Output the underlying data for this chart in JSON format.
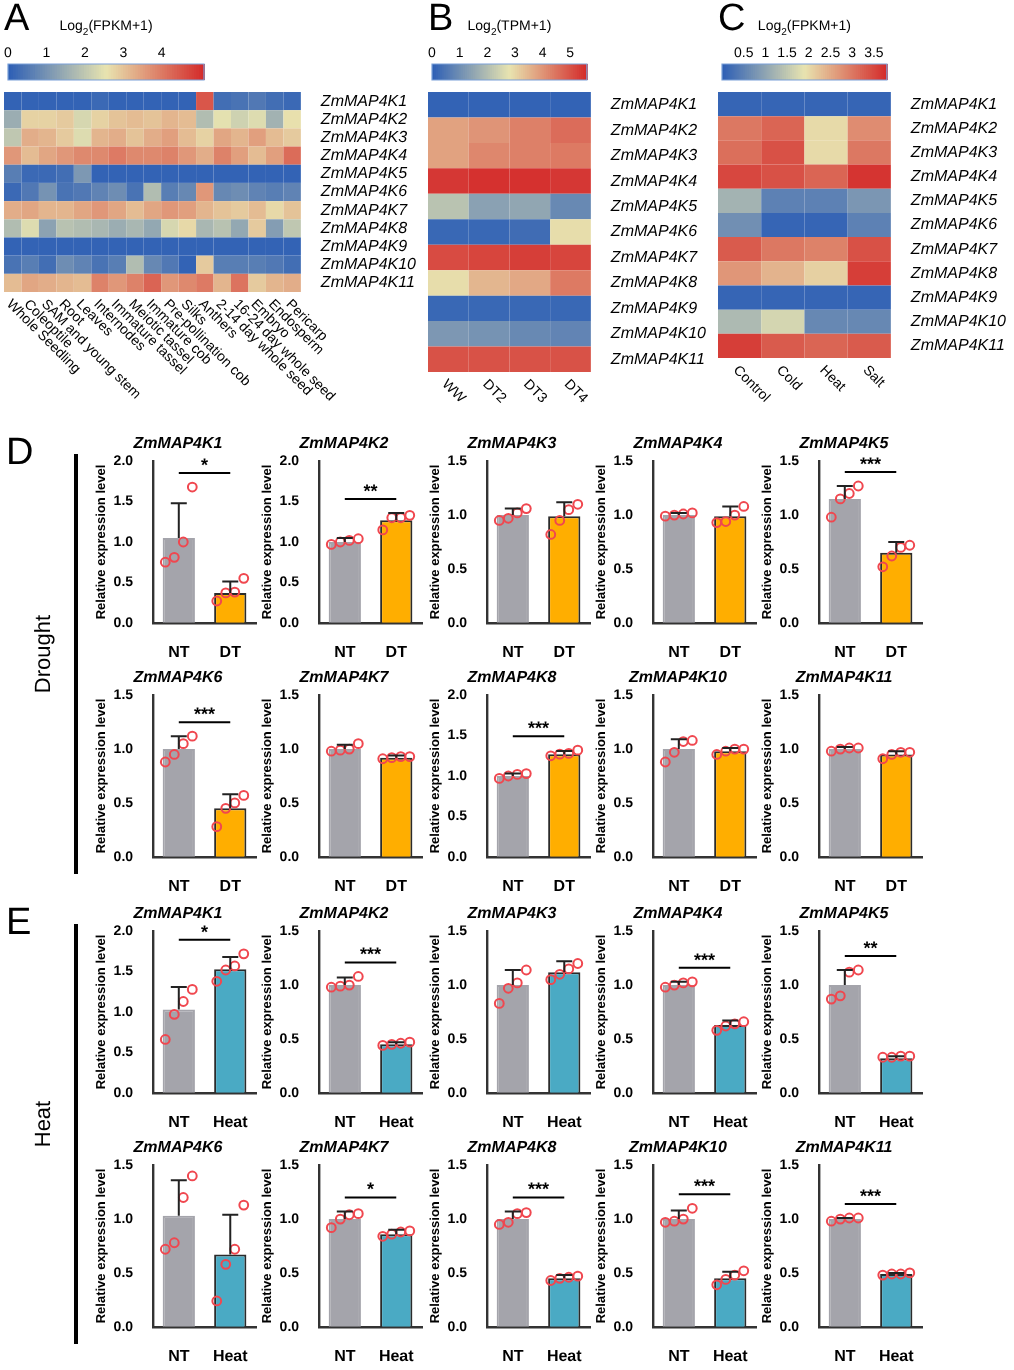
{
  "chart_data": [
    {
      "type": "heatmap",
      "annotations": [
        "A"
      ],
      "clabel": "Log$_{2}$(FPKM+1)",
      "clim": [
        0,
        5.1
      ],
      "cticks": [
        0,
        1,
        2,
        3,
        4
      ],
      "categories": [
        "Whole Seedling",
        "Coleoptile",
        "SAM and young stem",
        "Root",
        "Leaves",
        "Internodes",
        "Immature tassel",
        "Meiotic tassel",
        "Immature cob",
        "Pre-pollination cob",
        "Silks",
        "Anthers",
        "2-14 day whole seed",
        "16-24 day whole seed",
        "Embryo",
        "Endosperm",
        "Pericarp"
      ],
      "y_categories": [
        "ZmMAP4K1",
        "ZmMAP4K2",
        "ZmMAP4K3",
        "ZmMAP4K4",
        "ZmMAP4K5",
        "ZmMAP4K6",
        "ZmMAP4K7",
        "ZmMAP4K8",
        "ZmMAP4K9",
        "ZmMAP4K10",
        "ZmMAP4K11"
      ],
      "cells": [
        [
          0.1,
          0.1,
          0.1,
          0.1,
          0.1,
          0.2,
          0.1,
          0.1,
          0.1,
          0.1,
          0.1,
          4.5,
          0.3,
          0.4,
          0.5,
          0.3,
          0.2
        ],
        [
          1.5,
          2.8,
          2.8,
          2.9,
          2.3,
          2.8,
          3.0,
          3.1,
          3.0,
          3.2,
          3.1,
          1.8,
          2.5,
          2.2,
          2.4,
          1.6,
          2.6
        ],
        [
          2.0,
          3.3,
          3.2,
          2.9,
          2.4,
          3.2,
          3.3,
          3.0,
          3.3,
          3.5,
          3.1,
          2.8,
          3.4,
          3.2,
          3.5,
          3.1,
          2.9
        ],
        [
          3.6,
          3.1,
          3.4,
          3.6,
          3.8,
          3.8,
          4.0,
          3.8,
          3.8,
          3.9,
          3.6,
          3.3,
          3.9,
          3.5,
          3.1,
          3.5,
          4.2
        ],
        [
          0.6,
          0.2,
          0.2,
          0.3,
          1.1,
          0.1,
          0.1,
          0.1,
          0.1,
          0.1,
          0.1,
          0.1,
          0.1,
          0.1,
          0.1,
          0.1,
          0.1
        ],
        [
          0.2,
          0.5,
          1.0,
          0.4,
          0.5,
          0.7,
          0.9,
          0.4,
          1.8,
          0.6,
          0.8,
          3.6,
          0.8,
          0.9,
          0.7,
          0.6,
          0.7
        ],
        [
          3.3,
          3.4,
          3.2,
          3.2,
          3.4,
          3.6,
          3.4,
          3.1,
          3.4,
          3.6,
          3.5,
          3.2,
          3.0,
          2.9,
          3.1,
          2.7,
          3.0
        ],
        [
          1.8,
          2.4,
          1.3,
          1.9,
          1.8,
          1.7,
          1.5,
          1.7,
          1.4,
          2.3,
          2.7,
          1.7,
          1.9,
          1.4,
          2.9,
          1.2,
          2.0
        ],
        [
          0.1,
          0.1,
          0.1,
          0.1,
          0.1,
          0.1,
          0.1,
          0.1,
          0.1,
          0.1,
          0.1,
          0.1,
          0.1,
          0.1,
          0.1,
          0.1,
          0.1
        ],
        [
          0.4,
          0.6,
          0.3,
          0.9,
          0.7,
          0.4,
          0.6,
          1.8,
          0.8,
          0.5,
          0.1,
          2.9,
          0.6,
          0.6,
          0.6,
          0.5,
          0.3
        ],
        [
          3.1,
          3.4,
          3.3,
          3.2,
          3.1,
          3.9,
          3.6,
          3.9,
          4.3,
          3.6,
          3.8,
          4.0,
          3.2,
          4.1,
          2.9,
          3.2,
          3.3
        ]
      ]
    },
    {
      "type": "heatmap",
      "annotations": [
        "B"
      ],
      "clabel": "Log$_{2}$(TPM+1)",
      "clim": [
        0,
        5.6
      ],
      "cticks": [
        0,
        1,
        2,
        3,
        4,
        5
      ],
      "categories": [
        "WW",
        "DT2",
        "DT3",
        "DT4"
      ],
      "y_categories": [
        "ZmMAP4K1",
        "ZmMAP4K2",
        "ZmMAP4K3",
        "ZmMAP4K4",
        "ZmMAP4K5",
        "ZmMAP4K6",
        "ZmMAP4K7",
        "ZmMAP4K8",
        "ZmMAP4K9",
        "ZmMAP4K10",
        "ZmMAP4K11"
      ],
      "cells": [
        [
          0.1,
          0.1,
          0.1,
          0.1
        ],
        [
          3.8,
          4.0,
          4.3,
          4.6
        ],
        [
          3.8,
          4.2,
          4.3,
          4.4
        ],
        [
          5.4,
          5.5,
          5.5,
          5.4
        ],
        [
          2.1,
          1.4,
          1.5,
          0.9
        ],
        [
          0.2,
          0.2,
          0.3,
          2.9
        ],
        [
          5.1,
          5.2,
          5.3,
          5.2
        ],
        [
          2.9,
          3.5,
          3.7,
          4.4
        ],
        [
          0.2,
          0.2,
          0.2,
          0.2
        ],
        [
          1.2,
          1.1,
          0.9,
          0.8
        ],
        [
          5.0,
          5.0,
          5.0,
          5.0
        ]
      ]
    },
    {
      "type": "heatmap",
      "annotations": [
        "C"
      ],
      "clabel": "Log$_{2}$(FPKM+1)",
      "clim": [
        0,
        3.8
      ],
      "cticks": [
        0.5,
        1,
        1.5,
        2,
        2.5,
        3,
        3.5
      ],
      "categories": [
        "Control",
        "Cold",
        "Heat",
        "Salt"
      ],
      "y_categories": [
        "ZmMAP4K1",
        "ZmMAP4K2",
        "ZmMAP4K3",
        "ZmMAP4K4",
        "ZmMAP4K5",
        "ZmMAP4K6",
        "ZmMAP4K7",
        "ZmMAP4K8",
        "ZmMAP4K9",
        "ZmMAP4K10",
        "ZmMAP4K11"
      ],
      "cells": [
        [
          0.1,
          0.1,
          0.1,
          0.1
        ],
        [
          3.0,
          3.2,
          2.0,
          2.8
        ],
        [
          3.1,
          3.4,
          2.0,
          3.0
        ],
        [
          3.5,
          3.4,
          3.2,
          3.7
        ],
        [
          1.2,
          0.5,
          0.5,
          0.8
        ],
        [
          0.7,
          0.1,
          0.1,
          0.5
        ],
        [
          3.3,
          3.0,
          2.9,
          3.4
        ],
        [
          2.7,
          2.4,
          2.1,
          3.6
        ],
        [
          0.1,
          0.1,
          0.1,
          0.1
        ],
        [
          1.3,
          1.7,
          0.6,
          0.6
        ],
        [
          3.6,
          3.3,
          3.2,
          3.3
        ]
      ]
    },
    {
      "type": "bar",
      "title": "ZmMAP4K1",
      "ylabel": "Relative expression level",
      "categories": [
        "NT",
        "DT"
      ],
      "annotations": [
        "D",
        "Drought",
        "*"
      ],
      "ylim": [
        0,
        2
      ],
      "yticks": [
        {
          "value": 0,
          "label": "0.0"
        },
        {
          "value": 0.5,
          "label": "0.5"
        },
        {
          "value": 1,
          "label": "1.0"
        },
        {
          "value": 1.5,
          "label": "1.5"
        },
        {
          "value": 2,
          "label": "2.0"
        }
      ],
      "series": [
        {
          "type": "bar",
          "colors": [
            "#a4a4ab",
            "#ffae00"
          ],
          "values": [
            1.05,
            0.37
          ],
          "errors": [
            [
              1.05,
              1.48
            ],
            [
              0.37,
              0.51
            ]
          ]
        },
        {
          "type": "scatter",
          "marker": "circle",
          "color": "#f0474f",
          "x": [
            "NT",
            "NT",
            "NT",
            "NT",
            "DT",
            "DT",
            "DT",
            "DT"
          ],
          "values": [
            0.75,
            0.81,
            1.0,
            1.68,
            0.27,
            0.37,
            0.38,
            0.55
          ]
        }
      ]
    },
    {
      "type": "bar",
      "title": "ZmMAP4K2",
      "ylabel": "Relative expression level",
      "categories": [
        "NT",
        "DT"
      ],
      "annotations": [
        "**"
      ],
      "ylim": [
        0,
        2
      ],
      "yticks": [
        {
          "value": 0,
          "label": "0.0"
        },
        {
          "value": 0.5,
          "label": "0.5"
        },
        {
          "value": 1,
          "label": "1.0"
        },
        {
          "value": 1.5,
          "label": "1.5"
        },
        {
          "value": 2,
          "label": "2.0"
        }
      ],
      "series": [
        {
          "type": "bar",
          "colors": [
            "#a4a4ab",
            "#ffae00"
          ],
          "values": [
            1.0,
            1.27
          ],
          "errors": [
            [
              1.0,
              1.05
            ],
            [
              1.27,
              1.36
            ]
          ]
        },
        {
          "type": "scatter",
          "marker": "circle",
          "color": "#f0474f",
          "x": [
            "NT",
            "NT",
            "NT",
            "NT",
            "DT",
            "DT",
            "DT",
            "DT"
          ],
          "values": [
            0.97,
            1.0,
            1.02,
            1.04,
            1.15,
            1.3,
            1.3,
            1.33
          ]
        }
      ]
    },
    {
      "type": "bar",
      "title": "ZmMAP4K3",
      "ylabel": "Relative expression level",
      "categories": [
        "NT",
        "DT"
      ],
      "ylim": [
        0,
        1.5
      ],
      "yticks": [
        {
          "value": 0,
          "label": "0.0"
        },
        {
          "value": 0.5,
          "label": "0.5"
        },
        {
          "value": 1,
          "label": "1.0"
        },
        {
          "value": 1.5,
          "label": "1.5"
        }
      ],
      "series": [
        {
          "type": "bar",
          "colors": [
            "#a4a4ab",
            "#ffae00"
          ],
          "values": [
            1.0,
            0.99
          ],
          "errors": [
            [
              1.0,
              1.06
            ],
            [
              0.99,
              1.12
            ]
          ]
        },
        {
          "type": "scatter",
          "marker": "circle",
          "color": "#f0474f",
          "x": [
            "NT",
            "NT",
            "NT",
            "NT",
            "DT",
            "DT",
            "DT",
            "DT"
          ],
          "values": [
            0.95,
            0.97,
            1.02,
            1.06,
            0.82,
            0.95,
            1.05,
            1.1
          ]
        }
      ]
    },
    {
      "type": "bar",
      "title": "ZmMAP4K4",
      "ylabel": "Relative expression level",
      "categories": [
        "NT",
        "DT"
      ],
      "ylim": [
        0,
        1.5
      ],
      "yticks": [
        {
          "value": 0,
          "label": "0.0"
        },
        {
          "value": 0.5,
          "label": "0.5"
        },
        {
          "value": 1,
          "label": "1.0"
        },
        {
          "value": 1.5,
          "label": "1.5"
        }
      ],
      "series": [
        {
          "type": "bar",
          "colors": [
            "#a4a4ab",
            "#ffae00"
          ],
          "values": [
            1.0,
            0.99
          ],
          "errors": [
            [
              1.0,
              1.02
            ],
            [
              0.99,
              1.08
            ]
          ]
        },
        {
          "type": "scatter",
          "marker": "circle",
          "color": "#f0474f",
          "x": [
            "NT",
            "NT",
            "NT",
            "NT",
            "DT",
            "DT",
            "DT",
            "DT"
          ],
          "values": [
            0.99,
            1.0,
            1.01,
            1.02,
            0.93,
            0.94,
            1.0,
            1.08
          ]
        }
      ]
    },
    {
      "type": "bar",
      "title": "ZmMAP4K5",
      "ylabel": "Relative expression level",
      "categories": [
        "NT",
        "DT"
      ],
      "annotations": [
        "***"
      ],
      "ylim": [
        0,
        1.5
      ],
      "yticks": [
        {
          "value": 0,
          "label": "0.0"
        },
        {
          "value": 0.5,
          "label": "0.5"
        },
        {
          "value": 1,
          "label": "1.0"
        },
        {
          "value": 1.5,
          "label": "1.5"
        }
      ],
      "series": [
        {
          "type": "bar",
          "colors": [
            "#a4a4ab",
            "#ffae00"
          ],
          "values": [
            1.15,
            0.65
          ],
          "errors": [
            [
              1.15,
              1.27
            ],
            [
              0.65,
              0.75
            ]
          ]
        },
        {
          "type": "scatter",
          "marker": "circle",
          "color": "#f0474f",
          "x": [
            "NT",
            "NT",
            "NT",
            "NT",
            "DT",
            "DT",
            "DT",
            "DT"
          ],
          "values": [
            0.98,
            1.15,
            1.2,
            1.27,
            0.52,
            0.62,
            0.7,
            0.72
          ]
        }
      ]
    },
    {
      "type": "bar",
      "title": "ZmMAP4K6",
      "ylabel": "Relative expression level",
      "categories": [
        "NT",
        "DT"
      ],
      "annotations": [
        "***"
      ],
      "ylim": [
        0,
        1.5
      ],
      "yticks": [
        {
          "value": 0,
          "label": "0.0"
        },
        {
          "value": 0.5,
          "label": "0.5"
        },
        {
          "value": 1,
          "label": "1.0"
        },
        {
          "value": 1.5,
          "label": "1.5"
        }
      ],
      "series": [
        {
          "type": "bar",
          "colors": [
            "#a4a4ab",
            "#ffae00"
          ],
          "values": [
            1.0,
            0.45
          ],
          "errors": [
            [
              1.0,
              1.12
            ],
            [
              0.45,
              0.58
            ]
          ]
        },
        {
          "type": "scatter",
          "marker": "circle",
          "color": "#f0474f",
          "x": [
            "NT",
            "NT",
            "NT",
            "NT",
            "DT",
            "DT",
            "DT",
            "DT"
          ],
          "values": [
            0.88,
            0.95,
            1.05,
            1.12,
            0.28,
            0.45,
            0.5,
            0.57
          ]
        }
      ]
    },
    {
      "type": "bar",
      "title": "ZmMAP4K7",
      "ylabel": "Relative expression level",
      "categories": [
        "NT",
        "DT"
      ],
      "ylim": [
        0,
        1.5
      ],
      "yticks": [
        {
          "value": 0,
          "label": "0.0"
        },
        {
          "value": 0.5,
          "label": "0.5"
        },
        {
          "value": 1,
          "label": "1.0"
        },
        {
          "value": 1.5,
          "label": "1.5"
        }
      ],
      "series": [
        {
          "type": "bar",
          "colors": [
            "#a4a4ab",
            "#ffae00"
          ],
          "values": [
            1.0,
            0.92
          ],
          "errors": [
            [
              1.0,
              1.04
            ],
            [
              0.92,
              0.94
            ]
          ]
        },
        {
          "type": "scatter",
          "marker": "circle",
          "color": "#f0474f",
          "x": [
            "NT",
            "NT",
            "NT",
            "NT",
            "DT",
            "DT",
            "DT",
            "DT"
          ],
          "values": [
            0.98,
            0.99,
            1.0,
            1.05,
            0.91,
            0.92,
            0.93,
            0.93
          ]
        }
      ]
    },
    {
      "type": "bar",
      "title": "ZmMAP4K8",
      "ylabel": "Relative expression level",
      "categories": [
        "NT",
        "DT"
      ],
      "annotations": [
        "***"
      ],
      "ylim": [
        0,
        2
      ],
      "yticks": [
        {
          "value": 0,
          "label": "0.0"
        },
        {
          "value": 0.5,
          "label": "0.5"
        },
        {
          "value": 1,
          "label": "1.0"
        },
        {
          "value": 1.5,
          "label": "1.5"
        },
        {
          "value": 2,
          "label": "2.0"
        }
      ],
      "series": [
        {
          "type": "bar",
          "colors": [
            "#a4a4ab",
            "#ffae00"
          ],
          "values": [
            1.0,
            1.27
          ],
          "errors": [
            [
              1.0,
              1.03
            ],
            [
              1.27,
              1.31
            ]
          ]
        },
        {
          "type": "scatter",
          "marker": "circle",
          "color": "#f0474f",
          "x": [
            "NT",
            "NT",
            "NT",
            "NT",
            "DT",
            "DT",
            "DT",
            "DT"
          ],
          "values": [
            0.97,
            1.0,
            1.02,
            1.03,
            1.25,
            1.27,
            1.28,
            1.32
          ]
        }
      ]
    },
    {
      "type": "bar",
      "title": "ZmMAP4K10",
      "ylabel": "Relative expression level",
      "categories": [
        "NT",
        "DT"
      ],
      "ylim": [
        0,
        1.5
      ],
      "yticks": [
        {
          "value": 0,
          "label": "0.0"
        },
        {
          "value": 0.5,
          "label": "0.5"
        },
        {
          "value": 1,
          "label": "1.0"
        },
        {
          "value": 1.5,
          "label": "1.5"
        }
      ],
      "series": [
        {
          "type": "bar",
          "colors": [
            "#a4a4ab",
            "#ffae00"
          ],
          "values": [
            1.0,
            0.98
          ],
          "errors": [
            [
              1.0,
              1.09
            ],
            [
              0.98,
              1.01
            ]
          ]
        },
        {
          "type": "scatter",
          "marker": "circle",
          "color": "#f0474f",
          "x": [
            "NT",
            "NT",
            "NT",
            "NT",
            "DT",
            "DT",
            "DT",
            "DT"
          ],
          "values": [
            0.88,
            0.97,
            1.07,
            1.08,
            0.95,
            0.98,
            1.0,
            1.0
          ]
        }
      ]
    },
    {
      "type": "bar",
      "title": "ZmMAP4K11",
      "ylabel": "Relative expression level",
      "categories": [
        "NT",
        "DT"
      ],
      "ylim": [
        0,
        1.5
      ],
      "yticks": [
        {
          "value": 0,
          "label": "0.0"
        },
        {
          "value": 0.5,
          "label": "0.5"
        },
        {
          "value": 1,
          "label": "1.0"
        },
        {
          "value": 1.5,
          "label": "1.5"
        }
      ],
      "series": [
        {
          "type": "bar",
          "colors": [
            "#a4a4ab",
            "#ffae00"
          ],
          "values": [
            1.0,
            0.95
          ],
          "errors": [
            [
              1.0,
              1.02
            ],
            [
              0.95,
              0.98
            ]
          ]
        },
        {
          "type": "scatter",
          "marker": "circle",
          "color": "#f0474f",
          "x": [
            "NT",
            "NT",
            "NT",
            "NT",
            "DT",
            "DT",
            "DT",
            "DT"
          ],
          "values": [
            0.98,
            1.0,
            1.01,
            1.01,
            0.91,
            0.95,
            0.97,
            0.97
          ]
        }
      ]
    },
    {
      "type": "bar",
      "title": "ZmMAP4K1",
      "ylabel": "Relative expression level",
      "categories": [
        "NT",
        "Heat"
      ],
      "annotations": [
        "E",
        "Heat",
        "*"
      ],
      "ylim": [
        0,
        2
      ],
      "yticks": [
        {
          "value": 0,
          "label": "0.0"
        },
        {
          "value": 0.5,
          "label": "0.5"
        },
        {
          "value": 1,
          "label": "1.0"
        },
        {
          "value": 1.5,
          "label": "1.5"
        },
        {
          "value": 2,
          "label": "2.0"
        }
      ],
      "series": [
        {
          "type": "bar",
          "colors": [
            "#a4a4ab",
            "#4aaac4"
          ],
          "values": [
            1.03,
            1.53
          ],
          "errors": [
            [
              1.03,
              1.31
            ],
            [
              1.53,
              1.68
            ]
          ]
        },
        {
          "type": "scatter",
          "marker": "circle",
          "color": "#f0474f",
          "x": [
            "NT",
            "NT",
            "NT",
            "NT",
            "Heat",
            "Heat",
            "Heat",
            "Heat"
          ],
          "values": [
            0.66,
            0.97,
            1.13,
            1.28,
            1.38,
            1.52,
            1.57,
            1.72
          ]
        }
      ]
    },
    {
      "type": "bar",
      "title": "ZmMAP4K2",
      "ylabel": "Relative expression level",
      "categories": [
        "NT",
        "Heat"
      ],
      "annotations": [
        "***"
      ],
      "ylim": [
        0,
        1.5
      ],
      "yticks": [
        {
          "value": 0,
          "label": "0.0"
        },
        {
          "value": 0.5,
          "label": "0.5"
        },
        {
          "value": 1,
          "label": "1.0"
        },
        {
          "value": 1.5,
          "label": "1.5"
        }
      ],
      "series": [
        {
          "type": "bar",
          "colors": [
            "#a4a4ab",
            "#4aaac4"
          ],
          "values": [
            1.0,
            0.45
          ],
          "errors": [
            [
              1.0,
              1.07
            ],
            [
              0.45,
              0.47
            ]
          ]
        },
        {
          "type": "scatter",
          "marker": "circle",
          "color": "#f0474f",
          "x": [
            "NT",
            "NT",
            "NT",
            "NT",
            "Heat",
            "Heat",
            "Heat",
            "Heat"
          ],
          "values": [
            0.98,
            0.99,
            1.0,
            1.08,
            0.44,
            0.45,
            0.46,
            0.47
          ]
        }
      ]
    },
    {
      "type": "bar",
      "title": "ZmMAP4K3",
      "ylabel": "Relative expression level",
      "categories": [
        "NT",
        "Heat"
      ],
      "ylim": [
        0,
        1.5
      ],
      "yticks": [
        {
          "value": 0,
          "label": "0.0"
        },
        {
          "value": 0.5,
          "label": "0.5"
        },
        {
          "value": 1,
          "label": "1.0"
        },
        {
          "value": 1.5,
          "label": "1.5"
        }
      ],
      "series": [
        {
          "type": "bar",
          "colors": [
            "#a4a4ab",
            "#4aaac4"
          ],
          "values": [
            1.0,
            1.12
          ],
          "errors": [
            [
              1.0,
              1.14
            ],
            [
              1.12,
              1.22
            ]
          ]
        },
        {
          "type": "scatter",
          "marker": "circle",
          "color": "#f0474f",
          "x": [
            "NT",
            "NT",
            "NT",
            "NT",
            "Heat",
            "Heat",
            "Heat",
            "Heat"
          ],
          "values": [
            0.83,
            0.97,
            1.02,
            1.14,
            1.05,
            1.1,
            1.15,
            1.2
          ]
        }
      ]
    },
    {
      "type": "bar",
      "title": "ZmMAP4K4",
      "ylabel": "Relative expression level",
      "categories": [
        "NT",
        "Heat"
      ],
      "annotations": [
        "***"
      ],
      "ylim": [
        0,
        1.5
      ],
      "yticks": [
        {
          "value": 0,
          "label": "0.0"
        },
        {
          "value": 0.5,
          "label": "0.5"
        },
        {
          "value": 1,
          "label": "1.0"
        },
        {
          "value": 1.5,
          "label": "1.5"
        }
      ],
      "series": [
        {
          "type": "bar",
          "colors": [
            "#a4a4ab",
            "#4aaac4"
          ],
          "values": [
            1.0,
            0.63
          ],
          "errors": [
            [
              1.0,
              1.03
            ],
            [
              0.63,
              0.67
            ]
          ]
        },
        {
          "type": "scatter",
          "marker": "circle",
          "color": "#f0474f",
          "x": [
            "NT",
            "NT",
            "NT",
            "NT",
            "Heat",
            "Heat",
            "Heat",
            "Heat"
          ],
          "values": [
            0.98,
            1.0,
            1.02,
            1.03,
            0.58,
            0.62,
            0.64,
            0.66
          ]
        }
      ]
    },
    {
      "type": "bar",
      "title": "ZmMAP4K5",
      "ylabel": "Relative expression level",
      "categories": [
        "NT",
        "Heat"
      ],
      "annotations": [
        "**"
      ],
      "ylim": [
        0,
        1.5
      ],
      "yticks": [
        {
          "value": 0,
          "label": "0.0"
        },
        {
          "value": 0.5,
          "label": "0.5"
        },
        {
          "value": 1,
          "label": "1.0"
        },
        {
          "value": 1.5,
          "label": "1.5"
        }
      ],
      "series": [
        {
          "type": "bar",
          "colors": [
            "#a4a4ab",
            "#4aaac4"
          ],
          "values": [
            1.0,
            0.32
          ],
          "errors": [
            [
              1.0,
              1.14
            ],
            [
              0.32,
              0.34
            ]
          ]
        },
        {
          "type": "scatter",
          "marker": "circle",
          "color": "#f0474f",
          "x": [
            "NT",
            "NT",
            "NT",
            "NT",
            "Heat",
            "Heat",
            "Heat",
            "Heat"
          ],
          "values": [
            0.87,
            0.9,
            1.12,
            1.14,
            0.33,
            0.33,
            0.34,
            0.34
          ]
        }
      ]
    },
    {
      "type": "bar",
      "title": "ZmMAP4K6",
      "ylabel": "Relative expression level",
      "categories": [
        "NT",
        "Heat"
      ],
      "ylim": [
        0,
        1.5
      ],
      "yticks": [
        {
          "value": 0,
          "label": "0.0"
        },
        {
          "value": 0.5,
          "label": "0.5"
        },
        {
          "value": 1,
          "label": "1.0"
        },
        {
          "value": 1.5,
          "label": "1.5"
        }
      ],
      "series": [
        {
          "type": "bar",
          "colors": [
            "#a4a4ab",
            "#4aaac4"
          ],
          "values": [
            1.03,
            0.67
          ],
          "errors": [
            [
              1.03,
              1.36
            ],
            [
              0.67,
              1.04
            ]
          ]
        },
        {
          "type": "scatter",
          "marker": "circle",
          "color": "#f0474f",
          "x": [
            "NT",
            "NT",
            "NT",
            "NT",
            "Heat",
            "Heat",
            "Heat",
            "Heat"
          ],
          "values": [
            0.72,
            0.78,
            1.2,
            1.4,
            0.24,
            0.58,
            0.72,
            1.13
          ]
        }
      ]
    },
    {
      "type": "bar",
      "title": "ZmMAP4K7",
      "ylabel": "Relative expression level",
      "categories": [
        "NT",
        "Heat"
      ],
      "annotations": [
        "*"
      ],
      "ylim": [
        0,
        1.5
      ],
      "yticks": [
        {
          "value": 0,
          "label": "0.0"
        },
        {
          "value": 0.5,
          "label": "0.5"
        },
        {
          "value": 1,
          "label": "1.0"
        },
        {
          "value": 1.5,
          "label": "1.5"
        }
      ],
      "series": [
        {
          "type": "bar",
          "colors": [
            "#a4a4ab",
            "#4aaac4"
          ],
          "values": [
            1.0,
            0.86
          ],
          "errors": [
            [
              1.0,
              1.07
            ],
            [
              0.86,
              0.9
            ]
          ]
        },
        {
          "type": "scatter",
          "marker": "circle",
          "color": "#f0474f",
          "x": [
            "NT",
            "NT",
            "NT",
            "NT",
            "Heat",
            "Heat",
            "Heat",
            "Heat"
          ],
          "values": [
            0.92,
            1.0,
            1.04,
            1.05,
            0.84,
            0.86,
            0.88,
            0.89
          ]
        }
      ]
    },
    {
      "type": "bar",
      "title": "ZmMAP4K8",
      "ylabel": "Relative expression level",
      "categories": [
        "NT",
        "Heat"
      ],
      "annotations": [
        "***"
      ],
      "ylim": [
        0,
        1.5
      ],
      "yticks": [
        {
          "value": 0,
          "label": "0.0"
        },
        {
          "value": 0.5,
          "label": "0.5"
        },
        {
          "value": 1,
          "label": "1.0"
        },
        {
          "value": 1.5,
          "label": "1.5"
        }
      ],
      "series": [
        {
          "type": "bar",
          "colors": [
            "#a4a4ab",
            "#4aaac4"
          ],
          "values": [
            1.0,
            0.45
          ],
          "errors": [
            [
              1.0,
              1.07
            ],
            [
              0.45,
              0.48
            ]
          ]
        },
        {
          "type": "scatter",
          "marker": "circle",
          "color": "#f0474f",
          "x": [
            "NT",
            "NT",
            "NT",
            "NT",
            "Heat",
            "Heat",
            "Heat",
            "Heat"
          ],
          "values": [
            0.95,
            0.97,
            1.05,
            1.06,
            0.43,
            0.45,
            0.46,
            0.47
          ]
        }
      ]
    },
    {
      "type": "bar",
      "title": "ZmMAP4K10",
      "ylabel": "Relative expression level",
      "categories": [
        "NT",
        "Heat"
      ],
      "annotations": [
        "***"
      ],
      "ylim": [
        0,
        1.5
      ],
      "yticks": [
        {
          "value": 0,
          "label": "0.0"
        },
        {
          "value": 0.5,
          "label": "0.5"
        },
        {
          "value": 1,
          "label": "1.0"
        },
        {
          "value": 1.5,
          "label": "1.5"
        }
      ],
      "series": [
        {
          "type": "bar",
          "colors": [
            "#a4a4ab",
            "#4aaac4"
          ],
          "values": [
            1.0,
            0.45
          ],
          "errors": [
            [
              1.0,
              1.08
            ],
            [
              0.45,
              0.51
            ]
          ]
        },
        {
          "type": "scatter",
          "marker": "circle",
          "color": "#f0474f",
          "x": [
            "NT",
            "NT",
            "NT",
            "NT",
            "Heat",
            "Heat",
            "Heat",
            "Heat"
          ],
          "values": [
            0.97,
            0.98,
            1.0,
            1.1,
            0.39,
            0.44,
            0.48,
            0.52
          ]
        }
      ]
    },
    {
      "type": "bar",
      "title": "ZmMAP4K11",
      "ylabel": "Relative expression level",
      "categories": [
        "NT",
        "Heat"
      ],
      "annotations": [
        "***"
      ],
      "ylim": [
        0,
        1.5
      ],
      "yticks": [
        {
          "value": 0,
          "label": "0.0"
        },
        {
          "value": 0.5,
          "label": "0.5"
        },
        {
          "value": 1,
          "label": "1.0"
        },
        {
          "value": 1.5,
          "label": "1.5"
        }
      ],
      "series": [
        {
          "type": "bar",
          "colors": [
            "#a4a4ab",
            "#4aaac4"
          ],
          "values": [
            1.0,
            0.49
          ],
          "errors": [
            [
              1.0,
              1.01
            ],
            [
              0.49,
              0.5
            ]
          ]
        },
        {
          "type": "scatter",
          "marker": "circle",
          "color": "#f0474f",
          "x": [
            "NT",
            "NT",
            "NT",
            "NT",
            "Heat",
            "Heat",
            "Heat",
            "Heat"
          ],
          "values": [
            0.98,
            1.0,
            1.01,
            1.01,
            0.48,
            0.49,
            0.49,
            0.5
          ]
        }
      ]
    }
  ]
}
